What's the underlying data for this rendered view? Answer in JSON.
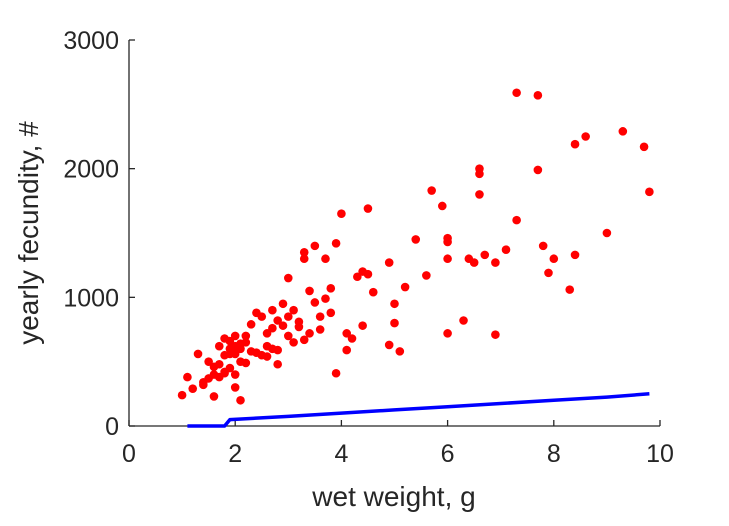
{
  "chart_data": {
    "type": "scatter",
    "title": "",
    "xlabel": "wet weight, g",
    "ylabel": "yearly fecundity, #",
    "xlim": [
      0,
      10
    ],
    "ylim": [
      0,
      3000
    ],
    "xticks": [
      "0",
      "2",
      "4",
      "6",
      "8",
      "10"
    ],
    "yticks": [
      "0",
      "1000",
      "2000",
      "3000"
    ],
    "grid": false,
    "legend": "none",
    "colors": {
      "points": "#ff0000",
      "curve": "#0000ff",
      "axes": "#262626"
    },
    "series": [
      {
        "kind": "scatter",
        "x": [
          1.0,
          1.1,
          1.2,
          1.3,
          1.4,
          1.4,
          1.5,
          1.5,
          1.6,
          1.6,
          1.6,
          1.7,
          1.7,
          1.7,
          1.8,
          1.8,
          1.8,
          1.8,
          1.9,
          1.9,
          1.9,
          1.9,
          2.0,
          2.0,
          2.0,
          2.0,
          2.0,
          2.1,
          2.1,
          2.1,
          2.1,
          2.2,
          2.2,
          2.2,
          2.3,
          2.3,
          2.4,
          2.4,
          2.5,
          2.5,
          2.6,
          2.6,
          2.6,
          2.7,
          2.7,
          2.7,
          2.8,
          2.8,
          2.8,
          2.9,
          2.9,
          3.0,
          3.0,
          3.0,
          3.1,
          3.1,
          3.2,
          3.2,
          3.3,
          3.3,
          3.3,
          3.4,
          3.4,
          3.5,
          3.5,
          3.6,
          3.6,
          3.7,
          3.7,
          3.8,
          3.8,
          3.9,
          3.9,
          4.0,
          4.1,
          4.1,
          4.2,
          4.3,
          4.4,
          4.4,
          4.5,
          4.5,
          4.6,
          4.9,
          4.9,
          5.0,
          5.0,
          5.1,
          5.2,
          5.4,
          5.6,
          5.7,
          5.9,
          6.0,
          6.0,
          6.0,
          6.0,
          6.3,
          6.4,
          6.5,
          6.6,
          6.6,
          6.6,
          6.7,
          6.9,
          6.9,
          7.1,
          7.3,
          7.3,
          7.7,
          7.7,
          7.8,
          7.9,
          8.0,
          8.3,
          8.4,
          8.4,
          8.6,
          9.0,
          9.3,
          9.7,
          9.8
        ],
        "y": [
          240,
          380,
          290,
          560,
          340,
          320,
          370,
          500,
          400,
          460,
          230,
          480,
          620,
          380,
          550,
          680,
          410,
          420,
          560,
          600,
          660,
          450,
          700,
          620,
          560,
          300,
          400,
          640,
          500,
          600,
          200,
          650,
          700,
          490,
          580,
          790,
          880,
          570,
          550,
          850,
          720,
          540,
          620,
          900,
          600,
          760,
          820,
          480,
          590,
          950,
          780,
          850,
          700,
          1150,
          650,
          900,
          810,
          770,
          1350,
          670,
          1300,
          720,
          1050,
          1400,
          960,
          750,
          850,
          990,
          1300,
          1070,
          880,
          1420,
          410,
          1650,
          590,
          720,
          680,
          1160,
          1200,
          780,
          1690,
          1180,
          1040,
          630,
          1270,
          800,
          950,
          580,
          1080,
          1450,
          1170,
          1830,
          1710,
          1300,
          1430,
          720,
          1460,
          820,
          1300,
          1270,
          1800,
          2000,
          1960,
          1330,
          710,
          1270,
          1370,
          2590,
          1600,
          1990,
          2570,
          1400,
          1190,
          1300,
          1060,
          2190,
          1330,
          2250,
          1500,
          2290,
          2170,
          1820
        ]
      },
      {
        "kind": "line",
        "x": [
          1.1,
          1.8,
          1.9,
          3,
          4,
          5,
          6,
          7,
          8,
          9,
          9.8
        ],
        "y": [
          0,
          0,
          50,
          75,
          100,
          125,
          150,
          175,
          200,
          225,
          250
        ]
      }
    ]
  }
}
